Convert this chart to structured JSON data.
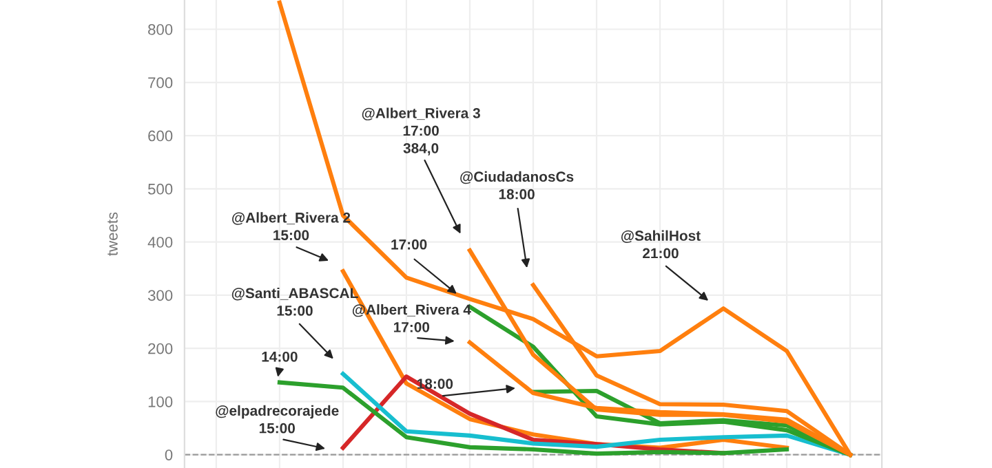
{
  "chart_data": {
    "type": "line",
    "ylabel": "tweets",
    "categories": [
      null,
      null,
      null,
      null,
      null,
      null,
      null,
      null,
      null,
      null,
      null
    ],
    "ylim": [
      -25,
      855
    ],
    "yticks": [
      0,
      100,
      200,
      300,
      400,
      500,
      600,
      700,
      800
    ],
    "grid": true,
    "legend": false,
    "marker": "none",
    "line_style": "solid",
    "series": [
      {
        "color": "#ff7f0e",
        "values": [
          null,
          850,
          450,
          333,
          293,
          255,
          185,
          195,
          275,
          195,
          0
        ]
      },
      {
        "color": "#ff7f0e",
        "values": [
          null,
          null,
          345,
          134,
          67,
          38,
          20,
          13,
          28,
          13,
          null
        ]
      },
      {
        "color": "#d62728",
        "values": [
          null,
          null,
          13,
          147,
          77,
          28,
          20,
          10,
          3,
          null,
          null
        ]
      },
      {
        "color": "#17becf",
        "values": [
          null,
          null,
          152,
          44,
          36,
          21,
          15,
          28,
          33,
          36,
          0
        ]
      },
      {
        "color": "#2ca02c",
        "values": [
          null,
          136,
          126,
          33,
          14,
          10,
          2,
          5,
          3,
          10,
          null
        ]
      },
      {
        "color": "#2ca02c",
        "values": [
          null,
          null,
          null,
          null,
          278,
          203,
          72,
          57,
          62,
          46,
          0
        ]
      },
      {
        "color": "#2ca02c",
        "values": [
          null,
          null,
          null,
          null,
          null,
          118,
          120,
          59,
          65,
          55,
          0
        ]
      },
      {
        "color": "#ff7f0e",
        "values": [
          null,
          null,
          null,
          null,
          384,
          188,
          85,
          75,
          75,
          62,
          0
        ]
      },
      {
        "color": "#ff7f0e",
        "values": [
          null,
          null,
          null,
          null,
          211,
          116,
          88,
          80,
          76,
          66,
          0
        ]
      },
      {
        "color": "#ff7f0e",
        "values": [
          null,
          null,
          null,
          null,
          null,
          319,
          149,
          95,
          94,
          82,
          0
        ]
      }
    ],
    "ref_lines": [
      {
        "axis": "y",
        "value": 0,
        "color": "#999999",
        "line_style": "dashed"
      }
    ],
    "annotations": [
      "@Albert_Rivera 3\n17:00\n384,0",
      "@CiudadanosCs\n18:00",
      "@Albert_Rivera 2\n15:00",
      "17:00",
      "@Santi_ABASCAL\n15:00",
      "@Albert_Rivera 4\n17:00",
      "14:00",
      "18:00",
      "@elpadrecorajede\n15:00",
      "@SahilHost\n21:00"
    ]
  }
}
